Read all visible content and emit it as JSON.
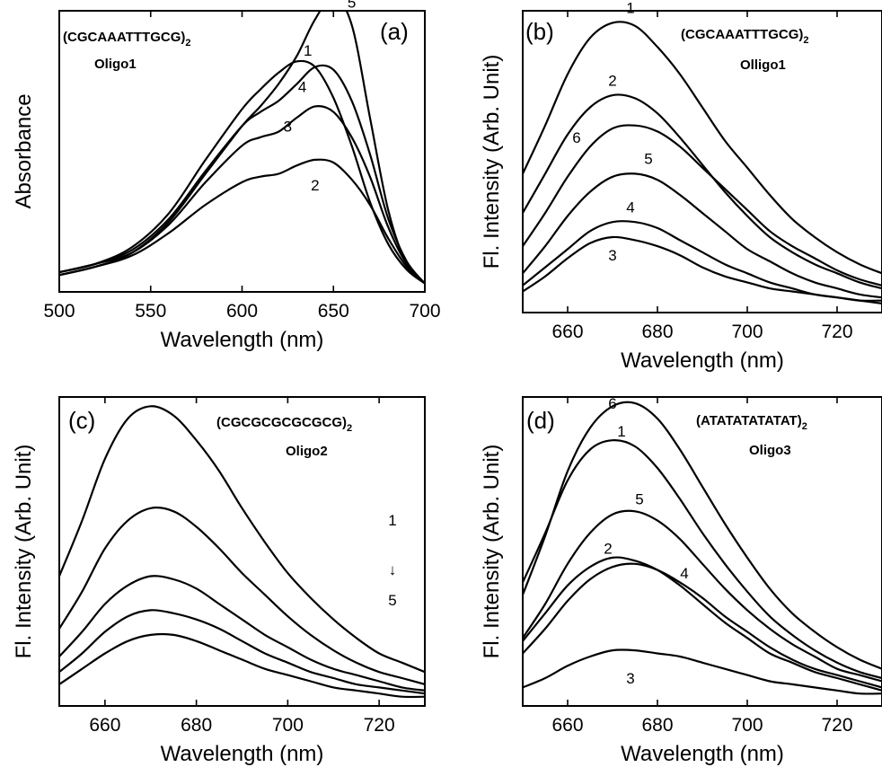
{
  "chart_data": [
    {
      "id": "a",
      "type": "line",
      "panel_label": "(a)",
      "sequence_label": "(CGCAAATTTGCG)",
      "sequence_subscript": "2",
      "oligo_label": "Oligo1",
      "xlabel": "Wavelength (nm)",
      "ylabel": "Absorbance",
      "xlim": [
        500,
        700
      ],
      "ylim": [
        0,
        1
      ],
      "xticks": [
        "500",
        "550",
        "600",
        "650",
        "700"
      ],
      "yticks_shown": false,
      "grid": false,
      "x": [
        500,
        520,
        540,
        560,
        580,
        600,
        610,
        620,
        630,
        640,
        650,
        660,
        670,
        680,
        690,
        700
      ],
      "series": [
        {
          "name": "1",
          "values": [
            0.07,
            0.1,
            0.16,
            0.28,
            0.47,
            0.65,
            0.72,
            0.78,
            0.82,
            0.8,
            0.69,
            0.52,
            0.32,
            0.17,
            0.08,
            0.03
          ]
        },
        {
          "name": "2",
          "values": [
            0.06,
            0.09,
            0.13,
            0.21,
            0.31,
            0.39,
            0.41,
            0.42,
            0.45,
            0.47,
            0.46,
            0.4,
            0.31,
            0.19,
            0.09,
            0.03
          ]
        },
        {
          "name": "3",
          "values": [
            0.07,
            0.1,
            0.14,
            0.24,
            0.39,
            0.52,
            0.55,
            0.57,
            0.62,
            0.66,
            0.64,
            0.55,
            0.41,
            0.23,
            0.1,
            0.03
          ]
        },
        {
          "name": "4",
          "values": [
            0.07,
            0.1,
            0.15,
            0.26,
            0.43,
            0.59,
            0.64,
            0.68,
            0.74,
            0.8,
            0.79,
            0.68,
            0.49,
            0.26,
            0.11,
            0.03
          ]
        },
        {
          "name": "5",
          "values": [
            0.06,
            0.09,
            0.14,
            0.25,
            0.42,
            0.59,
            0.66,
            0.74,
            0.84,
            0.97,
            1.05,
            0.95,
            0.62,
            0.29,
            0.1,
            0.03
          ]
        }
      ],
      "curve_labels": [
        {
          "text": "1",
          "x": 636,
          "y": 0.86
        },
        {
          "text": "2",
          "x": 640,
          "y": 0.38
        },
        {
          "text": "3",
          "x": 625,
          "y": 0.59
        },
        {
          "text": "4",
          "x": 633,
          "y": 0.73
        },
        {
          "text": "5",
          "x": 660,
          "y": 1.03
        }
      ]
    },
    {
      "id": "b",
      "type": "line",
      "panel_label": "(b)",
      "sequence_label": "(CGCAAATTTGCG)",
      "sequence_subscript": "2",
      "oligo_label": "Olligo1",
      "xlabel": "Wavelength (nm)",
      "ylabel": "Fl. Intensity (Arb. Unit)",
      "xlim": [
        650,
        730
      ],
      "ylim": [
        0,
        1
      ],
      "xticks": [
        "660",
        "680",
        "700",
        "720"
      ],
      "yticks_shown": false,
      "grid": false,
      "x": [
        650,
        655,
        660,
        665,
        670,
        675,
        680,
        685,
        690,
        695,
        700,
        705,
        710,
        715,
        720,
        725,
        730
      ],
      "series": [
        {
          "name": "1",
          "values": [
            0.46,
            0.62,
            0.79,
            0.91,
            0.96,
            0.95,
            0.88,
            0.79,
            0.68,
            0.57,
            0.48,
            0.39,
            0.31,
            0.25,
            0.2,
            0.16,
            0.13
          ]
        },
        {
          "name": "2",
          "values": [
            0.33,
            0.46,
            0.59,
            0.68,
            0.72,
            0.71,
            0.66,
            0.58,
            0.49,
            0.4,
            0.32,
            0.25,
            0.2,
            0.16,
            0.13,
            0.1,
            0.08
          ]
        },
        {
          "name": "3",
          "values": [
            0.07,
            0.12,
            0.18,
            0.23,
            0.25,
            0.24,
            0.22,
            0.19,
            0.15,
            0.12,
            0.1,
            0.08,
            0.07,
            0.06,
            0.05,
            0.04,
            0.03
          ]
        },
        {
          "name": "4",
          "values": [
            0.09,
            0.15,
            0.21,
            0.27,
            0.3,
            0.3,
            0.28,
            0.24,
            0.2,
            0.16,
            0.13,
            0.1,
            0.08,
            0.06,
            0.05,
            0.04,
            0.04
          ]
        },
        {
          "name": "5",
          "values": [
            0.13,
            0.22,
            0.32,
            0.4,
            0.45,
            0.46,
            0.44,
            0.39,
            0.33,
            0.27,
            0.21,
            0.17,
            0.13,
            0.1,
            0.08,
            0.06,
            0.05
          ]
        },
        {
          "name": "6",
          "values": [
            0.22,
            0.33,
            0.45,
            0.55,
            0.61,
            0.62,
            0.6,
            0.55,
            0.48,
            0.41,
            0.34,
            0.27,
            0.22,
            0.18,
            0.14,
            0.11,
            0.09
          ]
        }
      ],
      "curve_labels": [
        {
          "text": "1",
          "x": 674,
          "y": 1.01
        },
        {
          "text": "2",
          "x": 670,
          "y": 0.77
        },
        {
          "text": "3",
          "x": 670,
          "y": 0.19
        },
        {
          "text": "4",
          "x": 674,
          "y": 0.35
        },
        {
          "text": "5",
          "x": 678,
          "y": 0.51
        },
        {
          "text": "6",
          "x": 662,
          "y": 0.58
        }
      ]
    },
    {
      "id": "c",
      "type": "line",
      "panel_label": "(c)",
      "sequence_label": "(CGCGCGCGCGCG)",
      "sequence_subscript": "2",
      "oligo_label": "Oligo2",
      "xlabel": "Wavelength (nm)",
      "ylabel": "Fl. Intensity (Arb. Unit)",
      "xlim": [
        650,
        730
      ],
      "ylim": [
        0,
        1
      ],
      "xticks": [
        "660",
        "680",
        "700",
        "720"
      ],
      "yticks_shown": false,
      "grid": false,
      "annotation": {
        "top": "1",
        "bottom": "5",
        "arrow": "↓"
      },
      "x": [
        650,
        655,
        660,
        665,
        670,
        675,
        680,
        685,
        690,
        695,
        700,
        705,
        710,
        715,
        720,
        725,
        730
      ],
      "series": [
        {
          "name": "1",
          "values": [
            0.42,
            0.6,
            0.8,
            0.93,
            0.97,
            0.94,
            0.86,
            0.76,
            0.64,
            0.53,
            0.43,
            0.35,
            0.28,
            0.22,
            0.17,
            0.14,
            0.11
          ]
        },
        {
          "name": "2",
          "values": [
            0.25,
            0.37,
            0.51,
            0.6,
            0.64,
            0.63,
            0.58,
            0.51,
            0.43,
            0.36,
            0.29,
            0.23,
            0.18,
            0.14,
            0.11,
            0.09,
            0.07
          ]
        },
        {
          "name": "3",
          "values": [
            0.16,
            0.24,
            0.33,
            0.39,
            0.42,
            0.41,
            0.38,
            0.33,
            0.28,
            0.23,
            0.19,
            0.15,
            0.12,
            0.1,
            0.08,
            0.06,
            0.05
          ]
        },
        {
          "name": "4",
          "values": [
            0.11,
            0.17,
            0.24,
            0.29,
            0.31,
            0.3,
            0.28,
            0.25,
            0.21,
            0.17,
            0.14,
            0.11,
            0.09,
            0.07,
            0.06,
            0.05,
            0.04
          ]
        },
        {
          "name": "5",
          "values": [
            0.07,
            0.12,
            0.17,
            0.21,
            0.23,
            0.23,
            0.21,
            0.18,
            0.15,
            0.12,
            0.1,
            0.08,
            0.06,
            0.05,
            0.04,
            0.03,
            0.03
          ]
        }
      ]
    },
    {
      "id": "d",
      "type": "line",
      "panel_label": "(d)",
      "sequence_label": "(ATATATATATAT)",
      "sequence_subscript": "2",
      "oligo_label": "Oligo3",
      "xlabel": "Wavelength (nm)",
      "ylabel": "Fl. Intensity (Arb. Unit)",
      "xlim": [
        650,
        730
      ],
      "ylim": [
        0,
        1
      ],
      "xticks": [
        "660",
        "680",
        "700",
        "720"
      ],
      "yticks_shown": false,
      "grid": false,
      "x": [
        650,
        655,
        660,
        665,
        670,
        675,
        680,
        685,
        690,
        695,
        700,
        705,
        710,
        715,
        720,
        725,
        730
      ],
      "series": [
        {
          "name": "1",
          "values": [
            0.4,
            0.56,
            0.73,
            0.83,
            0.86,
            0.84,
            0.77,
            0.67,
            0.56,
            0.46,
            0.37,
            0.29,
            0.23,
            0.18,
            0.14,
            0.11,
            0.09
          ]
        },
        {
          "name": "2",
          "values": [
            0.21,
            0.3,
            0.39,
            0.45,
            0.48,
            0.47,
            0.44,
            0.39,
            0.33,
            0.27,
            0.22,
            0.17,
            0.14,
            0.11,
            0.09,
            0.07,
            0.05
          ]
        },
        {
          "name": "3",
          "values": [
            0.06,
            0.09,
            0.13,
            0.16,
            0.18,
            0.18,
            0.17,
            0.16,
            0.14,
            0.12,
            0.1,
            0.08,
            0.07,
            0.06,
            0.05,
            0.04,
            0.04
          ]
        },
        {
          "name": "4",
          "values": [
            0.17,
            0.25,
            0.34,
            0.41,
            0.45,
            0.46,
            0.44,
            0.4,
            0.35,
            0.29,
            0.24,
            0.19,
            0.15,
            0.12,
            0.1,
            0.08,
            0.06
          ]
        },
        {
          "name": "5",
          "values": [
            0.22,
            0.33,
            0.46,
            0.56,
            0.62,
            0.63,
            0.6,
            0.54,
            0.46,
            0.38,
            0.31,
            0.25,
            0.2,
            0.16,
            0.12,
            0.1,
            0.08
          ]
        },
        {
          "name": "6",
          "values": [
            0.36,
            0.55,
            0.76,
            0.9,
            0.97,
            0.98,
            0.93,
            0.83,
            0.71,
            0.59,
            0.48,
            0.38,
            0.3,
            0.24,
            0.19,
            0.15,
            0.12
          ]
        }
      ],
      "curve_labels": [
        {
          "text": "1",
          "x": 672,
          "y": 0.89
        },
        {
          "text": "2",
          "x": 669,
          "y": 0.51
        },
        {
          "text": "3",
          "x": 674,
          "y": 0.09
        },
        {
          "text": "4",
          "x": 686,
          "y": 0.43
        },
        {
          "text": "5",
          "x": 676,
          "y": 0.67
        },
        {
          "text": "6",
          "x": 670,
          "y": 0.98
        }
      ]
    }
  ]
}
